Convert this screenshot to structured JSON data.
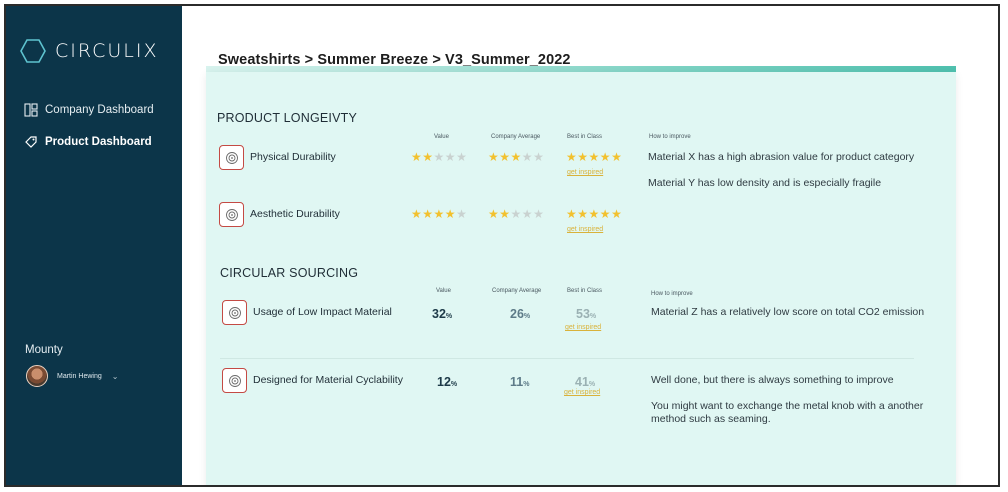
{
  "app": {
    "name": "CIRCULIX"
  },
  "sidebar": {
    "items": [
      {
        "label": "Company Dashboard",
        "icon": "dashboard-grid-icon"
      },
      {
        "label": "Product Dashboard",
        "icon": "product-tag-icon"
      }
    ],
    "org": "Mounty",
    "user": {
      "name": "Martin Hewing"
    }
  },
  "breadcrumb": "Sweatshirts > Summer Breeze > V3_Summer_2022",
  "colors": {
    "sidebar": "#0c3549",
    "panel": "#e0f7f3",
    "accent": "#4fc0ae",
    "star": "#f2c12e",
    "link": "#d9b23a",
    "icon_border": "#c44a44"
  },
  "longevity": {
    "title": "PRODUCT LONGEIVTY",
    "headers": {
      "value": "Value",
      "avg": "Company Average",
      "best": "Best in Class",
      "improve": "How to improve"
    },
    "rows": [
      {
        "label": "Physical Durability",
        "value_stars": 2,
        "avg_stars": 3,
        "best_stars": 5,
        "link": "get inspired",
        "tips": [
          "Material X has a high abrasion value for product category",
          "Material Y has low density and is especially fragile"
        ]
      },
      {
        "label": "Aesthetic Durability",
        "value_stars": 4,
        "avg_stars": 2,
        "best_stars": 5,
        "link": "get inspired",
        "tips": []
      }
    ]
  },
  "sourcing": {
    "title": "CIRCULAR SOURCING",
    "headers": {
      "value": "Value",
      "avg": "Company Average",
      "best": "Best in Class",
      "improve": "How to improve"
    },
    "rows": [
      {
        "label": "Usage of Low Impact Material",
        "value": "32",
        "avg": "26",
        "best": "53",
        "unit": "%",
        "link": "get inspired",
        "tips": [
          "Material Z has a relatively low score on total CO2 emission"
        ]
      },
      {
        "label": "Designed for Material Cyclability",
        "value": "12",
        "avg": "11",
        "best": "41",
        "unit": "%",
        "link": "get inspired",
        "tips": [
          "Well done, but there is always something to improve",
          "You might want to exchange the metal knob with a another method such as seaming."
        ]
      }
    ]
  }
}
